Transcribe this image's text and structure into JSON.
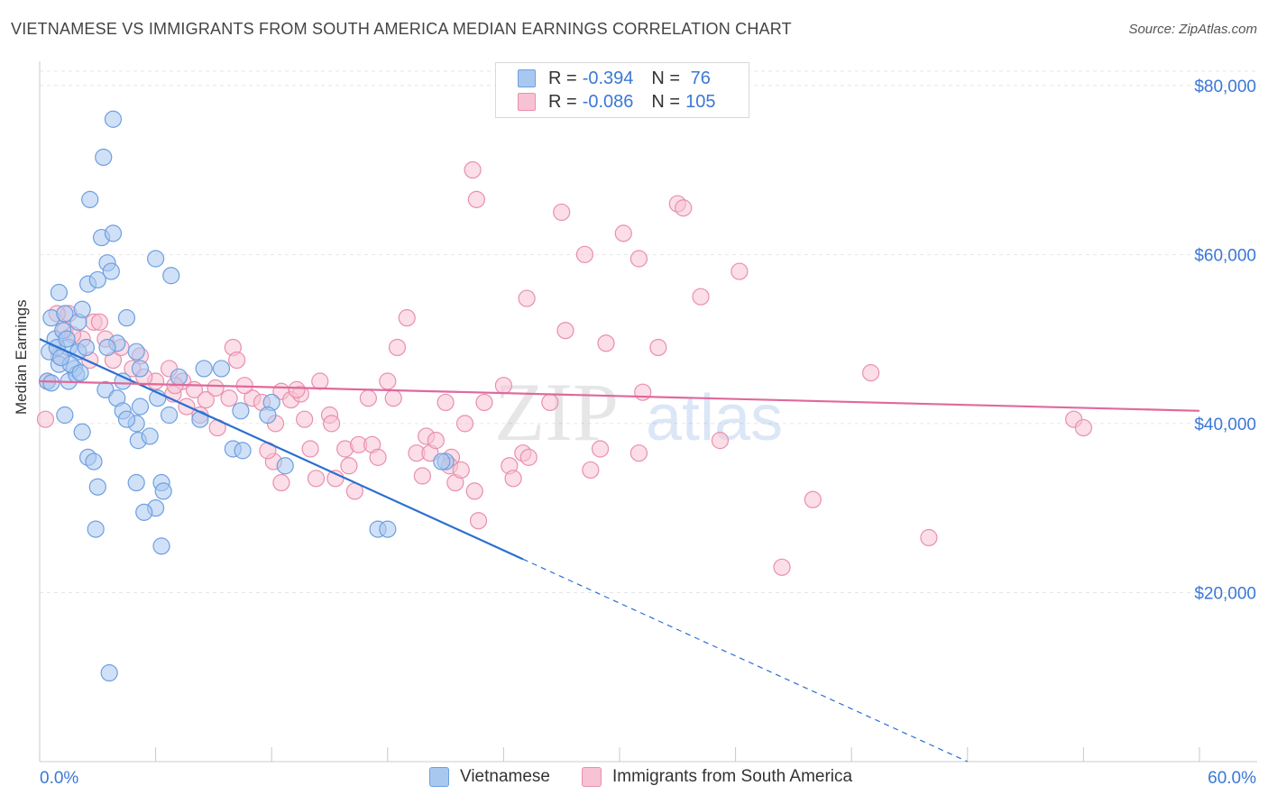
{
  "title": "VIETNAMESE VS IMMIGRANTS FROM SOUTH AMERICA MEDIAN EARNINGS CORRELATION CHART",
  "source": "Source: ZipAtlas.com",
  "colors": {
    "blue_fill": "#a9c8f0",
    "blue_stroke": "#6d9fe0",
    "blue_line": "#2a6fd1",
    "pink_fill": "#f7c2d3",
    "pink_stroke": "#e98fae",
    "pink_line": "#e0699a",
    "axis_text_blue": "#3b78d6",
    "grid": "#e6e6e6"
  },
  "legend_top": {
    "rows": [
      {
        "r_label": "R =",
        "r_value": "-0.394",
        "n_label": "N =",
        "n_value": " 76",
        "series": "blue"
      },
      {
        "r_label": "R =",
        "r_value": "-0.086",
        "n_label": "N =",
        "n_value": "105",
        "series": "pink"
      }
    ]
  },
  "legend_bottom": [
    "Vietnamese",
    "Immigrants from South America"
  ],
  "watermark": {
    "zip": "ZIP",
    "atlas": "atlas"
  },
  "chart_data": {
    "type": "scatter",
    "title": "VIETNAMESE VS IMMIGRANTS FROM SOUTH AMERICA MEDIAN EARNINGS CORRELATION CHART",
    "xlabel": "",
    "ylabel": "Median Earnings",
    "xlim": [
      0,
      60
    ],
    "ylim": [
      0,
      82000
    ],
    "x_tick_labels": [
      "0.0%",
      "60.0%"
    ],
    "y_ticks": [
      20000,
      40000,
      60000,
      80000
    ],
    "y_tick_labels": [
      "$20,000",
      "$40,000",
      "$60,000",
      "$80,000"
    ],
    "series": [
      {
        "name": "Vietnamese",
        "r": -0.394,
        "n": 76,
        "trend": {
          "x0": 0,
          "y0": 50000,
          "x1_solid": 25,
          "x1": 48,
          "y1": 0
        },
        "points": [
          [
            0.5,
            48500
          ],
          [
            1.0,
            47000
          ],
          [
            0.8,
            50000
          ],
          [
            1.2,
            51000
          ],
          [
            0.6,
            52500
          ],
          [
            1.5,
            49000
          ],
          [
            2.0,
            52000
          ],
          [
            0.4,
            45000
          ],
          [
            1.0,
            55500
          ],
          [
            1.3,
            53000
          ],
          [
            2.2,
            53500
          ],
          [
            2.5,
            56500
          ],
          [
            3.0,
            57000
          ],
          [
            3.5,
            59000
          ],
          [
            3.7,
            58000
          ],
          [
            3.2,
            62000
          ],
          [
            3.8,
            62500
          ],
          [
            2.6,
            66500
          ],
          [
            3.3,
            71500
          ],
          [
            3.8,
            76000
          ],
          [
            6.0,
            59500
          ],
          [
            6.8,
            57500
          ],
          [
            4.5,
            52500
          ],
          [
            4.0,
            49500
          ],
          [
            5.0,
            48500
          ],
          [
            3.5,
            49000
          ],
          [
            2.0,
            48500
          ],
          [
            1.8,
            46500
          ],
          [
            1.5,
            45000
          ],
          [
            1.9,
            45800
          ],
          [
            3.4,
            44000
          ],
          [
            4.3,
            45000
          ],
          [
            5.2,
            46500
          ],
          [
            6.1,
            43000
          ],
          [
            7.2,
            45500
          ],
          [
            8.5,
            46500
          ],
          [
            9.4,
            46500
          ],
          [
            4.0,
            43000
          ],
          [
            4.3,
            41500
          ],
          [
            5.2,
            42000
          ],
          [
            5.0,
            40000
          ],
          [
            4.5,
            40500
          ],
          [
            6.7,
            41000
          ],
          [
            8.3,
            40500
          ],
          [
            10.4,
            41500
          ],
          [
            12.0,
            42500
          ],
          [
            11.8,
            41000
          ],
          [
            2.2,
            39000
          ],
          [
            1.3,
            41000
          ],
          [
            5.1,
            38000
          ],
          [
            5.7,
            38500
          ],
          [
            2.5,
            36000
          ],
          [
            2.8,
            35500
          ],
          [
            5.0,
            33000
          ],
          [
            6.3,
            33000
          ],
          [
            6.4,
            32000
          ],
          [
            3.0,
            32500
          ],
          [
            6.0,
            30000
          ],
          [
            5.4,
            29500
          ],
          [
            2.9,
            27500
          ],
          [
            6.3,
            25500
          ],
          [
            3.6,
            10500
          ],
          [
            10.0,
            37000
          ],
          [
            10.5,
            36800
          ],
          [
            12.7,
            35000
          ],
          [
            17.5,
            27500
          ],
          [
            18.0,
            27500
          ],
          [
            21.0,
            35500
          ],
          [
            20.8,
            35500
          ],
          [
            0.9,
            49000
          ],
          [
            1.4,
            50000
          ],
          [
            2.4,
            49000
          ],
          [
            0.6,
            44800
          ],
          [
            1.6,
            47000
          ],
          [
            2.1,
            46000
          ],
          [
            1.1,
            47800
          ]
        ]
      },
      {
        "name": "Immigrants from South America",
        "r": -0.086,
        "n": 105,
        "trend": {
          "x0": 0,
          "y0": 45000,
          "x1": 60,
          "y1": 41500
        },
        "points": [
          [
            0.3,
            40500
          ],
          [
            0.4,
            45000
          ],
          [
            1.0,
            48000
          ],
          [
            1.3,
            51000
          ],
          [
            1.5,
            53000
          ],
          [
            2.2,
            50000
          ],
          [
            2.8,
            52000
          ],
          [
            3.4,
            50000
          ],
          [
            3.8,
            47500
          ],
          [
            4.2,
            49000
          ],
          [
            5.2,
            48000
          ],
          [
            4.8,
            46500
          ],
          [
            6.0,
            45000
          ],
          [
            6.7,
            46500
          ],
          [
            7.4,
            45000
          ],
          [
            8.0,
            44000
          ],
          [
            7.6,
            42000
          ],
          [
            8.6,
            42800
          ],
          [
            8.3,
            41000
          ],
          [
            9.2,
            39500
          ],
          [
            9.8,
            43000
          ],
          [
            10.0,
            49000
          ],
          [
            10.2,
            47500
          ],
          [
            11.0,
            43000
          ],
          [
            11.5,
            42500
          ],
          [
            12.5,
            43800
          ],
          [
            12.2,
            40000
          ],
          [
            13.0,
            42800
          ],
          [
            13.5,
            43500
          ],
          [
            14.5,
            45000
          ],
          [
            13.7,
            40500
          ],
          [
            15.0,
            41000
          ],
          [
            14.0,
            37000
          ],
          [
            12.1,
            35500
          ],
          [
            12.5,
            33000
          ],
          [
            14.3,
            33500
          ],
          [
            15.3,
            33500
          ],
          [
            15.8,
            37000
          ],
          [
            16.0,
            35000
          ],
          [
            16.5,
            37500
          ],
          [
            16.3,
            32000
          ],
          [
            17.2,
            37500
          ],
          [
            17.5,
            36000
          ],
          [
            18.0,
            45000
          ],
          [
            18.3,
            43000
          ],
          [
            18.5,
            49000
          ],
          [
            19.0,
            52500
          ],
          [
            17.0,
            43000
          ],
          [
            19.5,
            36500
          ],
          [
            20.0,
            38500
          ],
          [
            20.2,
            36500
          ],
          [
            20.5,
            38000
          ],
          [
            21.3,
            36000
          ],
          [
            21.2,
            35000
          ],
          [
            21.5,
            33000
          ],
          [
            21.8,
            34500
          ],
          [
            22.0,
            40000
          ],
          [
            21.0,
            42500
          ],
          [
            22.5,
            32000
          ],
          [
            22.7,
            28500
          ],
          [
            23.0,
            42500
          ],
          [
            24.0,
            44500
          ],
          [
            24.3,
            35000
          ],
          [
            24.5,
            33500
          ],
          [
            25.0,
            36500
          ],
          [
            25.2,
            54800
          ],
          [
            25.3,
            36000
          ],
          [
            26.4,
            42500
          ],
          [
            27.2,
            51000
          ],
          [
            27.0,
            65000
          ],
          [
            28.2,
            60000
          ],
          [
            28.5,
            34500
          ],
          [
            29.0,
            37000
          ],
          [
            29.3,
            49500
          ],
          [
            30.2,
            62500
          ],
          [
            31.0,
            59500
          ],
          [
            31.2,
            43700
          ],
          [
            31.0,
            36500
          ],
          [
            22.4,
            70000
          ],
          [
            22.6,
            66500
          ],
          [
            32.0,
            49000
          ],
          [
            33.0,
            66000
          ],
          [
            33.3,
            65500
          ],
          [
            34.2,
            55000
          ],
          [
            35.2,
            38000
          ],
          [
            36.2,
            58000
          ],
          [
            38.4,
            23000
          ],
          [
            40.0,
            31000
          ],
          [
            43.0,
            46000
          ],
          [
            46.0,
            26500
          ],
          [
            53.5,
            40500
          ],
          [
            54.0,
            39500
          ],
          [
            6.9,
            43500
          ],
          [
            11.8,
            36800
          ],
          [
            15.1,
            40000
          ],
          [
            19.8,
            33800
          ],
          [
            2.6,
            47500
          ],
          [
            3.1,
            52000
          ],
          [
            0.9,
            53000
          ],
          [
            1.7,
            50500
          ],
          [
            5.4,
            45500
          ],
          [
            7.0,
            44500
          ],
          [
            9.1,
            44200
          ],
          [
            10.6,
            44500
          ],
          [
            13.3,
            44000
          ]
        ]
      }
    ]
  }
}
